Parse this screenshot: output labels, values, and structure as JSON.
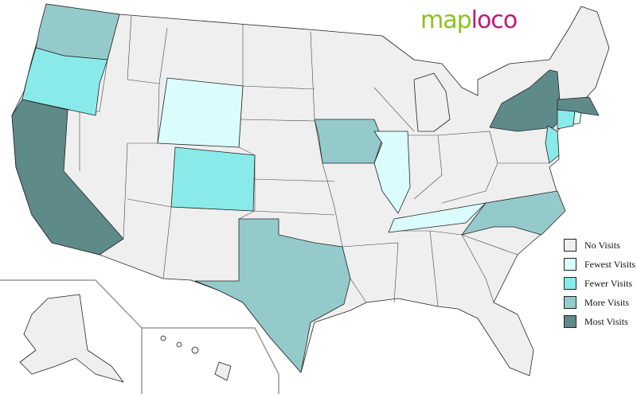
{
  "logo": {
    "part1": "map",
    "part2": "loco"
  },
  "colors": {
    "no_visits": "#efefef",
    "fewest": "#dafcfc",
    "fewer": "#8aeaea",
    "more": "#94caca",
    "most": "#5e8a8a"
  },
  "legend": [
    {
      "label": "No Visits",
      "level": "none"
    },
    {
      "label": "Fewest Visits",
      "level": "fewest"
    },
    {
      "label": "Fewer Visits",
      "level": "fewer"
    },
    {
      "label": "More Visits",
      "level": "more"
    },
    {
      "label": "Most Visits",
      "level": "most"
    }
  ],
  "states": {
    "Washington": "more",
    "Oregon": "fewer",
    "California": "most",
    "Wyoming": "fewest",
    "Colorado": "fewer",
    "Iowa": "more",
    "Illinois": "fewest",
    "Tennessee": "fewest",
    "North Carolina": "more",
    "Texas": "more",
    "New York": "most",
    "Massachusetts": "most",
    "Connecticut": "fewer",
    "Rhode Island": "fewest",
    "New Jersey": "fewer"
  }
}
